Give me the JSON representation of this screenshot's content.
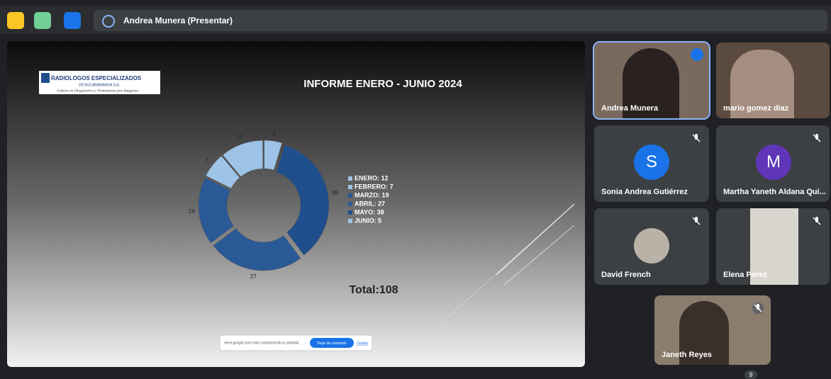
{
  "toolbar": {
    "presenter": "Andrea Munera (Presentar)"
  },
  "slide": {
    "logo_name": "RADIOLOGOS ESPECIALIZADOS",
    "logo_city": "DE BUCARAMANGA S.A.",
    "logo_tagline": "Líderes en Diagnóstico y Tratamiento por Imágenes",
    "total": "Total:108"
  },
  "chart_data": {
    "type": "donut",
    "title": "INFORME ENERO - JUNIO  2024",
    "categories": [
      "ENERO: 12",
      "FEBRERO: 7",
      "MARZO: 19",
      "ABRIL: 27",
      "MAYO: 38",
      "JUNIO: 5"
    ],
    "values": [
      12,
      7,
      19,
      27,
      38,
      5
    ],
    "colors": [
      "#9dc3e6",
      "#9dc3e6",
      "#2a5a96",
      "#2a5a96",
      "#1f4e8c",
      "#9dc3e6"
    ],
    "legend": "right"
  },
  "share_bar": {
    "message": "meet.google.com está compartiendo tu pantalla.",
    "stop": "Dejar de compartir",
    "hide": "Ocultar"
  },
  "participants": [
    {
      "name": "Andrea Munera"
    },
    {
      "name": "mario gomez diaz"
    },
    {
      "name": "Sonia Andrea Gutiérrez",
      "initial": "S"
    },
    {
      "name": "Martha Yaneth Aldana Qui...",
      "initial": "M"
    },
    {
      "name": "David French"
    },
    {
      "name": "Elena Perez"
    },
    {
      "name": "Janeth Reyes"
    }
  ],
  "more_count": "9"
}
